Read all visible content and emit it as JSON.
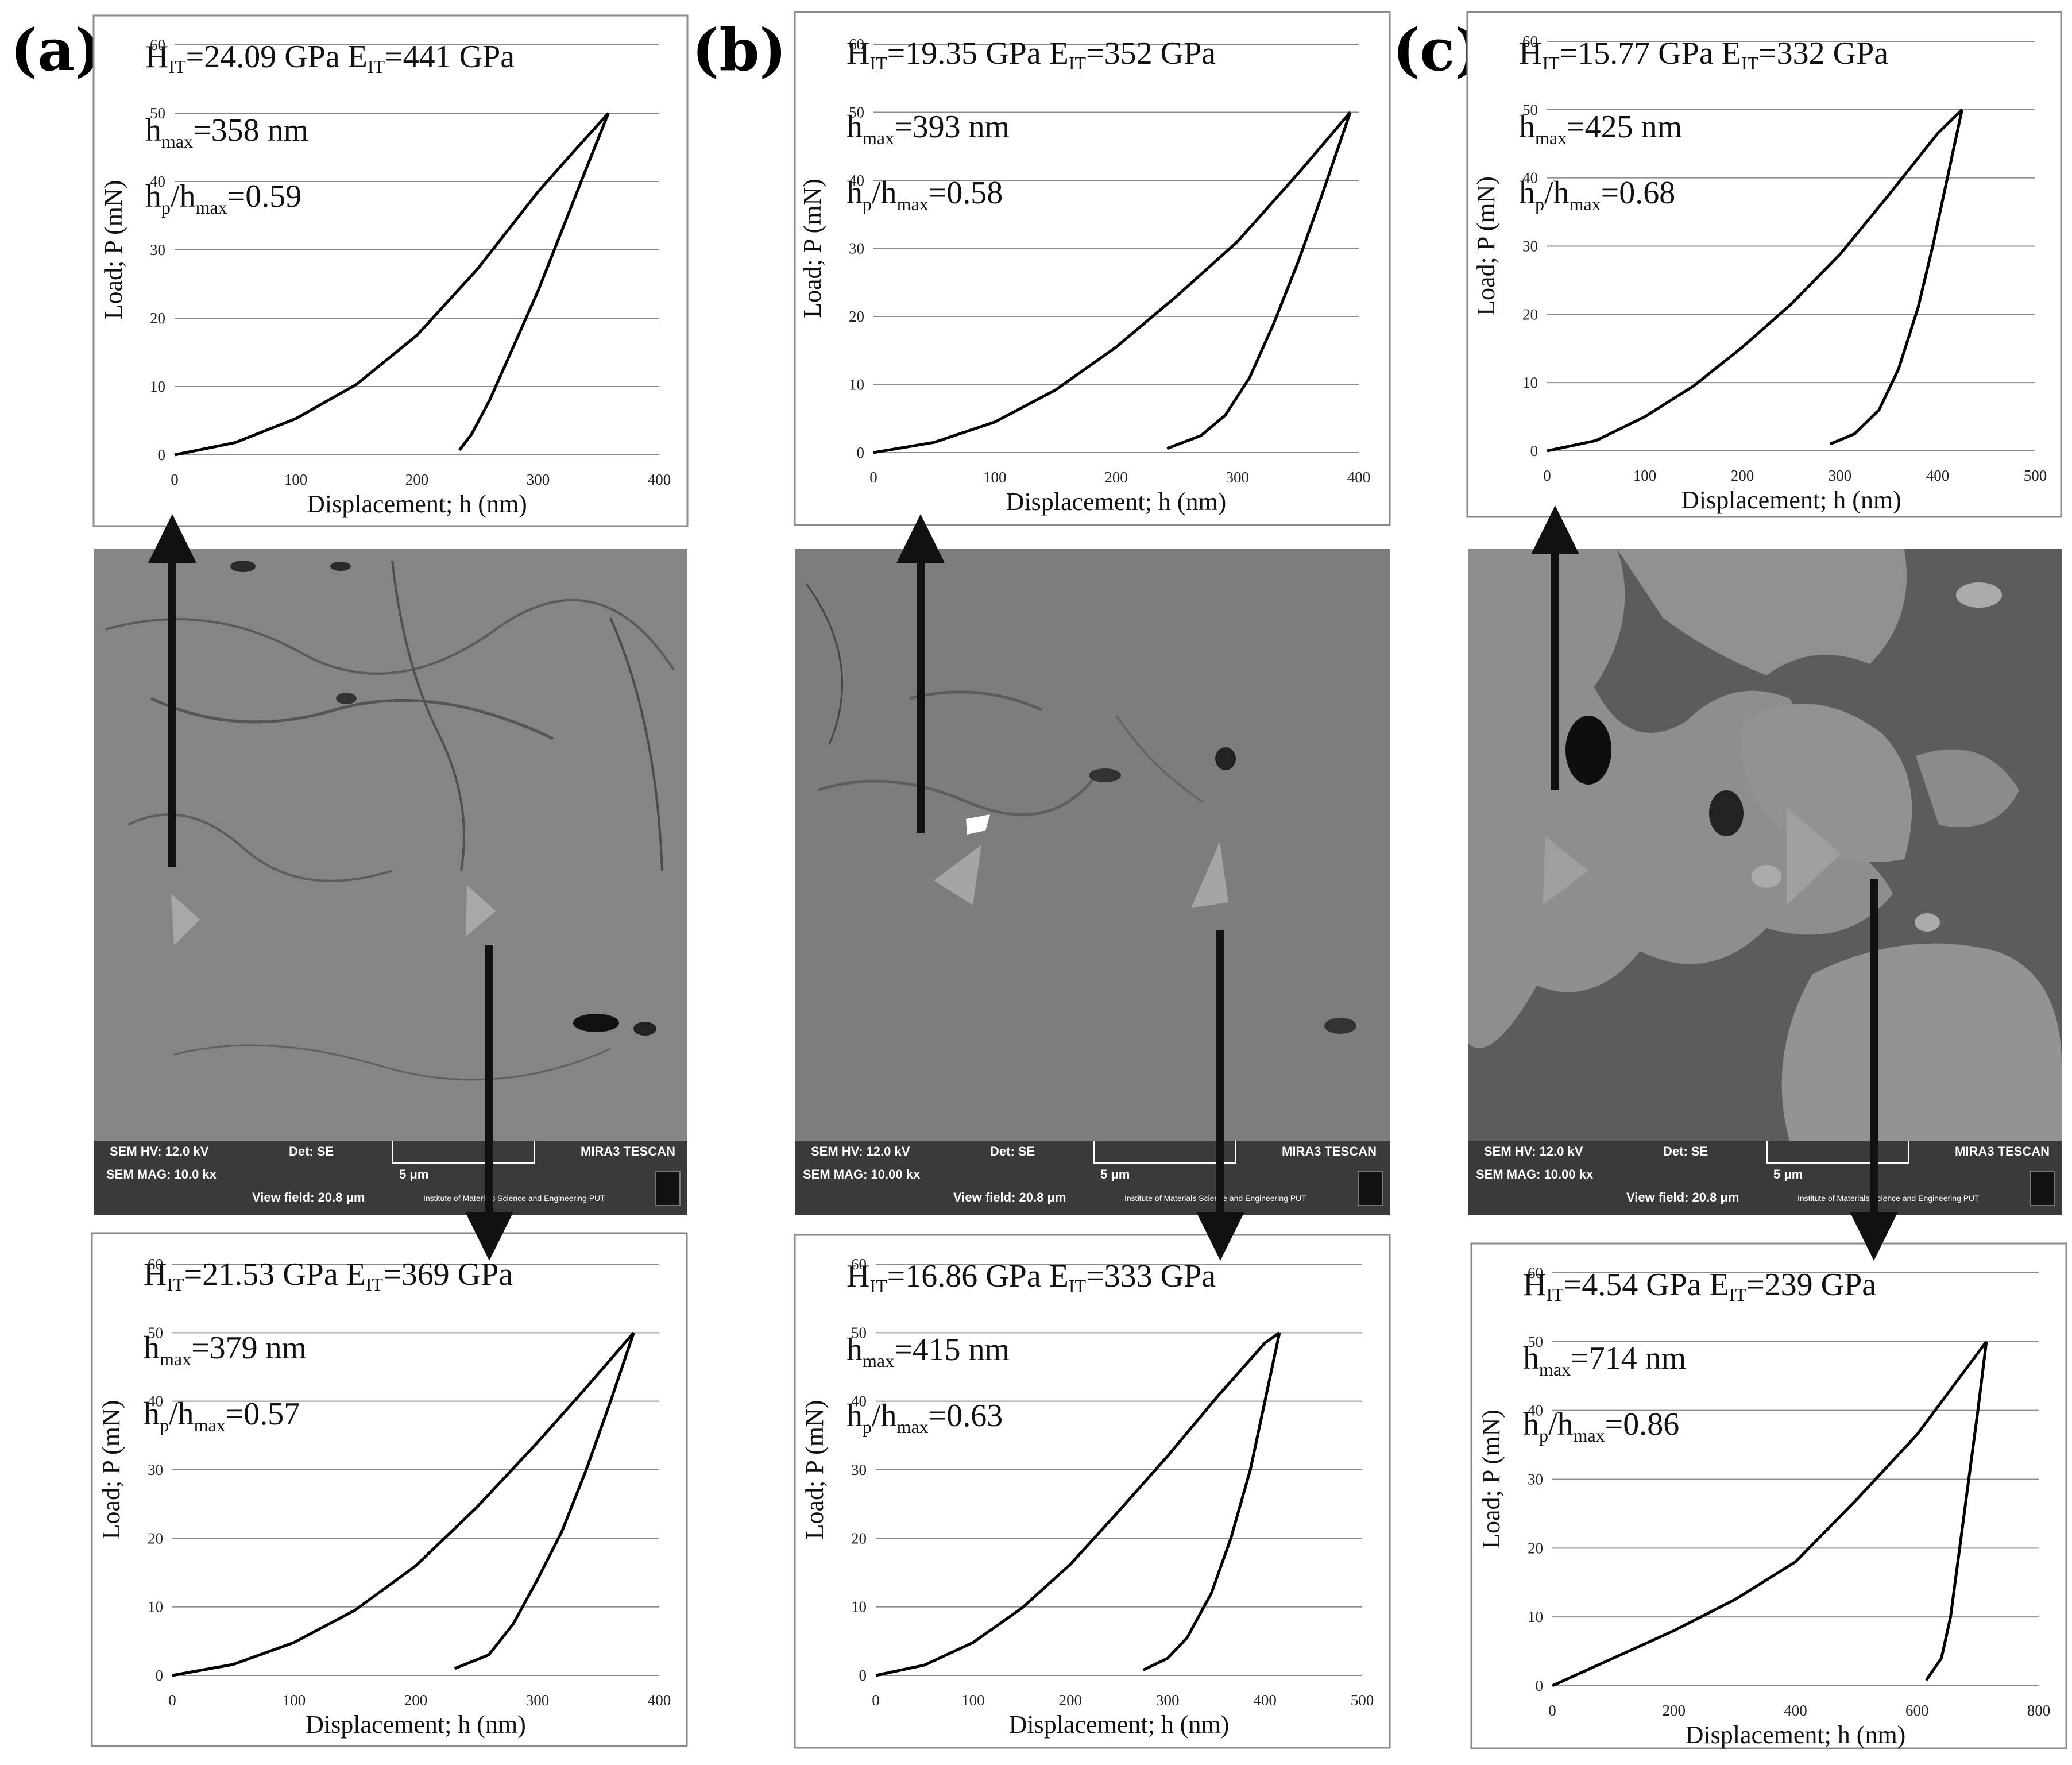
{
  "panels": [
    {
      "letter": "(a)",
      "sem": {
        "hv": "SEM HV: 12.0 kV",
        "det": "Det: SE",
        "brand": "MIRA3 TESCAN",
        "mag": "SEM MAG: 10.0 kx",
        "scale": "5 μm",
        "view": "View field: 20.8 μm",
        "institute": "Institute of Materials Science and Engineering PUT"
      }
    },
    {
      "letter": "(b)",
      "sem": {
        "hv": "SEM HV: 12.0 kV",
        "det": "Det: SE",
        "brand": "MIRA3 TESCAN",
        "mag": "SEM MAG: 10.00 kx",
        "scale": "5 μm",
        "view": "View field: 20.8 μm",
        "institute": "Institute of Materials Science and Engineering PUT"
      }
    },
    {
      "letter": "(c)",
      "sem": {
        "hv": "SEM HV: 12.0 kV",
        "det": "Det: SE",
        "brand": "MIRA3 TESCAN",
        "mag": "SEM MAG: 10.00 kx",
        "scale": "5 μm",
        "view": "View field: 20.8 μm",
        "institute": "Institute of Materials Science and Engineering PUT"
      }
    }
  ],
  "chart_data": [
    {
      "id": "a-top",
      "type": "line",
      "xlabel": "Displacement; h (nm)",
      "ylabel": "Load; P (mN)",
      "xlim": [
        0,
        400
      ],
      "ylim": [
        0,
        60
      ],
      "xticks": [
        0,
        100,
        200,
        300,
        400
      ],
      "yticks": [
        0,
        10,
        20,
        30,
        40,
        50,
        60
      ],
      "grid": "horizontal",
      "annotations": {
        "H": "24.09 GPa",
        "E": "441 GPa",
        "hmax": "358 nm",
        "ratio": "0.59"
      },
      "series": [
        {
          "values": [
            [
              0,
              0
            ],
            [
              50,
              1.8
            ],
            [
              100,
              5.3
            ],
            [
              150,
              10.3
            ],
            [
              200,
              17.5
            ],
            [
              250,
              27.2
            ],
            [
              300,
              38.5
            ],
            [
              330,
              44.5
            ],
            [
              358,
              50
            ]
          ]
        },
        {
          "values": [
            [
              358,
              50
            ],
            [
              340,
              42
            ],
            [
              320,
              33
            ],
            [
              300,
              24
            ],
            [
              280,
              16
            ],
            [
              260,
              8
            ],
            [
              245,
              3
            ],
            [
              235,
              0.7
            ]
          ]
        }
      ]
    },
    {
      "id": "b-top",
      "type": "line",
      "xlabel": "Displacement; h (nm)",
      "ylabel": "Load; P (mN)",
      "xlim": [
        0,
        400
      ],
      "ylim": [
        0,
        60
      ],
      "xticks": [
        0,
        100,
        200,
        300,
        400
      ],
      "yticks": [
        0,
        10,
        20,
        30,
        40,
        50,
        60
      ],
      "grid": "horizontal",
      "annotations": {
        "H": "19.35 GPa",
        "E": "352 GPa",
        "hmax": "393 nm",
        "ratio": "0.58"
      },
      "series": [
        {
          "values": [
            [
              0,
              0
            ],
            [
              50,
              1.5
            ],
            [
              100,
              4.5
            ],
            [
              150,
              9.2
            ],
            [
              200,
              15.5
            ],
            [
              250,
              23
            ],
            [
              300,
              31
            ],
            [
              350,
              41
            ],
            [
              393,
              50
            ]
          ]
        },
        {
          "values": [
            [
              393,
              50
            ],
            [
              370,
              38
            ],
            [
              350,
              28
            ],
            [
              330,
              19
            ],
            [
              310,
              11
            ],
            [
              290,
              5.5
            ],
            [
              270,
              2.5
            ],
            [
              242,
              0.6
            ]
          ]
        }
      ]
    },
    {
      "id": "c-top",
      "type": "line",
      "xlabel": "Displacement; h (nm)",
      "ylabel": "Load; P (mN)",
      "xlim": [
        0,
        500
      ],
      "ylim": [
        0,
        60
      ],
      "xticks": [
        0,
        100,
        200,
        300,
        400,
        500
      ],
      "yticks": [
        0,
        10,
        20,
        30,
        40,
        50,
        60
      ],
      "grid": "horizontal",
      "annotations": {
        "H": "15.77 GPa",
        "E": "332 GPa",
        "hmax": "425 nm",
        "ratio": "0.68"
      },
      "series": [
        {
          "values": [
            [
              0,
              0
            ],
            [
              50,
              1.5
            ],
            [
              100,
              5
            ],
            [
              150,
              9.5
            ],
            [
              200,
              15.2
            ],
            [
              250,
              21.5
            ],
            [
              300,
              28.8
            ],
            [
              350,
              37.5
            ],
            [
              400,
              46.5
            ],
            [
              425,
              50
            ]
          ]
        },
        {
          "values": [
            [
              425,
              50
            ],
            [
              410,
              40
            ],
            [
              395,
              30
            ],
            [
              380,
              21
            ],
            [
              360,
              12
            ],
            [
              340,
              6
            ],
            [
              315,
              2.5
            ],
            [
              290,
              1
            ]
          ]
        }
      ]
    },
    {
      "id": "a-bottom",
      "type": "line",
      "xlabel": "Displacement; h (nm)",
      "ylabel": "Load; P (mN)",
      "xlim": [
        0,
        400
      ],
      "ylim": [
        0,
        60
      ],
      "xticks": [
        0,
        100,
        200,
        300,
        400
      ],
      "yticks": [
        0,
        10,
        20,
        30,
        40,
        50,
        60
      ],
      "grid": "horizontal",
      "annotations": {
        "H": "21.53 GPa",
        "E": "369 GPa",
        "hmax": "379 nm",
        "ratio": "0.57"
      },
      "series": [
        {
          "values": [
            [
              0,
              0
            ],
            [
              50,
              1.6
            ],
            [
              100,
              4.8
            ],
            [
              150,
              9.5
            ],
            [
              200,
              16
            ],
            [
              250,
              24.5
            ],
            [
              300,
              34
            ],
            [
              340,
              42
            ],
            [
              379,
              50
            ]
          ]
        },
        {
          "values": [
            [
              379,
              50
            ],
            [
              360,
              40
            ],
            [
              340,
              30
            ],
            [
              320,
              21
            ],
            [
              300,
              14
            ],
            [
              280,
              7.5
            ],
            [
              260,
              3
            ],
            [
              232,
              1
            ]
          ]
        }
      ]
    },
    {
      "id": "b-bottom",
      "type": "line",
      "xlabel": "Displacement; h (nm)",
      "ylabel": "Load; P (mN)",
      "xlim": [
        0,
        500
      ],
      "ylim": [
        0,
        60
      ],
      "xticks": [
        0,
        100,
        200,
        300,
        400,
        500
      ],
      "yticks": [
        0,
        10,
        20,
        30,
        40,
        50,
        60
      ],
      "grid": "horizontal",
      "annotations": {
        "H": "16.86 GPa",
        "E": "333 GPa",
        "hmax": "415 nm",
        "ratio": "0.63"
      },
      "series": [
        {
          "values": [
            [
              0,
              0
            ],
            [
              50,
              1.5
            ],
            [
              100,
              4.8
            ],
            [
              150,
              9.8
            ],
            [
              200,
              16.2
            ],
            [
              250,
              24
            ],
            [
              300,
              32
            ],
            [
              350,
              40.5
            ],
            [
              400,
              48.5
            ],
            [
              415,
              50
            ]
          ]
        },
        {
          "values": [
            [
              415,
              50
            ],
            [
              400,
              40
            ],
            [
              385,
              30
            ],
            [
              365,
              20
            ],
            [
              345,
              12
            ],
            [
              320,
              5.5
            ],
            [
              300,
              2.5
            ],
            [
              275,
              0.8
            ]
          ]
        }
      ]
    },
    {
      "id": "c-bottom",
      "type": "line",
      "xlabel": "Displacement; h (nm)",
      "ylabel": "Load; P (mN)",
      "xlim": [
        0,
        800
      ],
      "ylim": [
        0,
        60
      ],
      "xticks": [
        0,
        200,
        400,
        600,
        800
      ],
      "yticks": [
        0,
        10,
        20,
        30,
        40,
        50,
        60
      ],
      "grid": "horizontal",
      "annotations": {
        "H": "4.54 GPa",
        "E": "239 GPa",
        "hmax": "714 nm",
        "ratio": "0.86"
      },
      "series": [
        {
          "values": [
            [
              0,
              0
            ],
            [
              100,
              4
            ],
            [
              200,
              8
            ],
            [
              300,
              12.5
            ],
            [
              400,
              18
            ],
            [
              500,
              27
            ],
            [
              600,
              36.5
            ],
            [
              714,
              50
            ]
          ]
        },
        {
          "values": [
            [
              714,
              50
            ],
            [
              700,
              40
            ],
            [
              685,
              30
            ],
            [
              670,
              20
            ],
            [
              655,
              10
            ],
            [
              640,
              4
            ],
            [
              615,
              0.8
            ]
          ]
        }
      ]
    }
  ]
}
